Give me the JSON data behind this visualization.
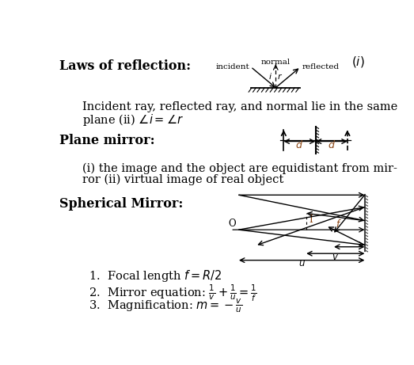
{
  "bg_color": "#ffffff",
  "text_color": "#000000",
  "formula_color": "#8B4513",
  "title": "Laws of reflection:",
  "section2": "Plane mirror:",
  "section3": "Spherical Mirror:"
}
